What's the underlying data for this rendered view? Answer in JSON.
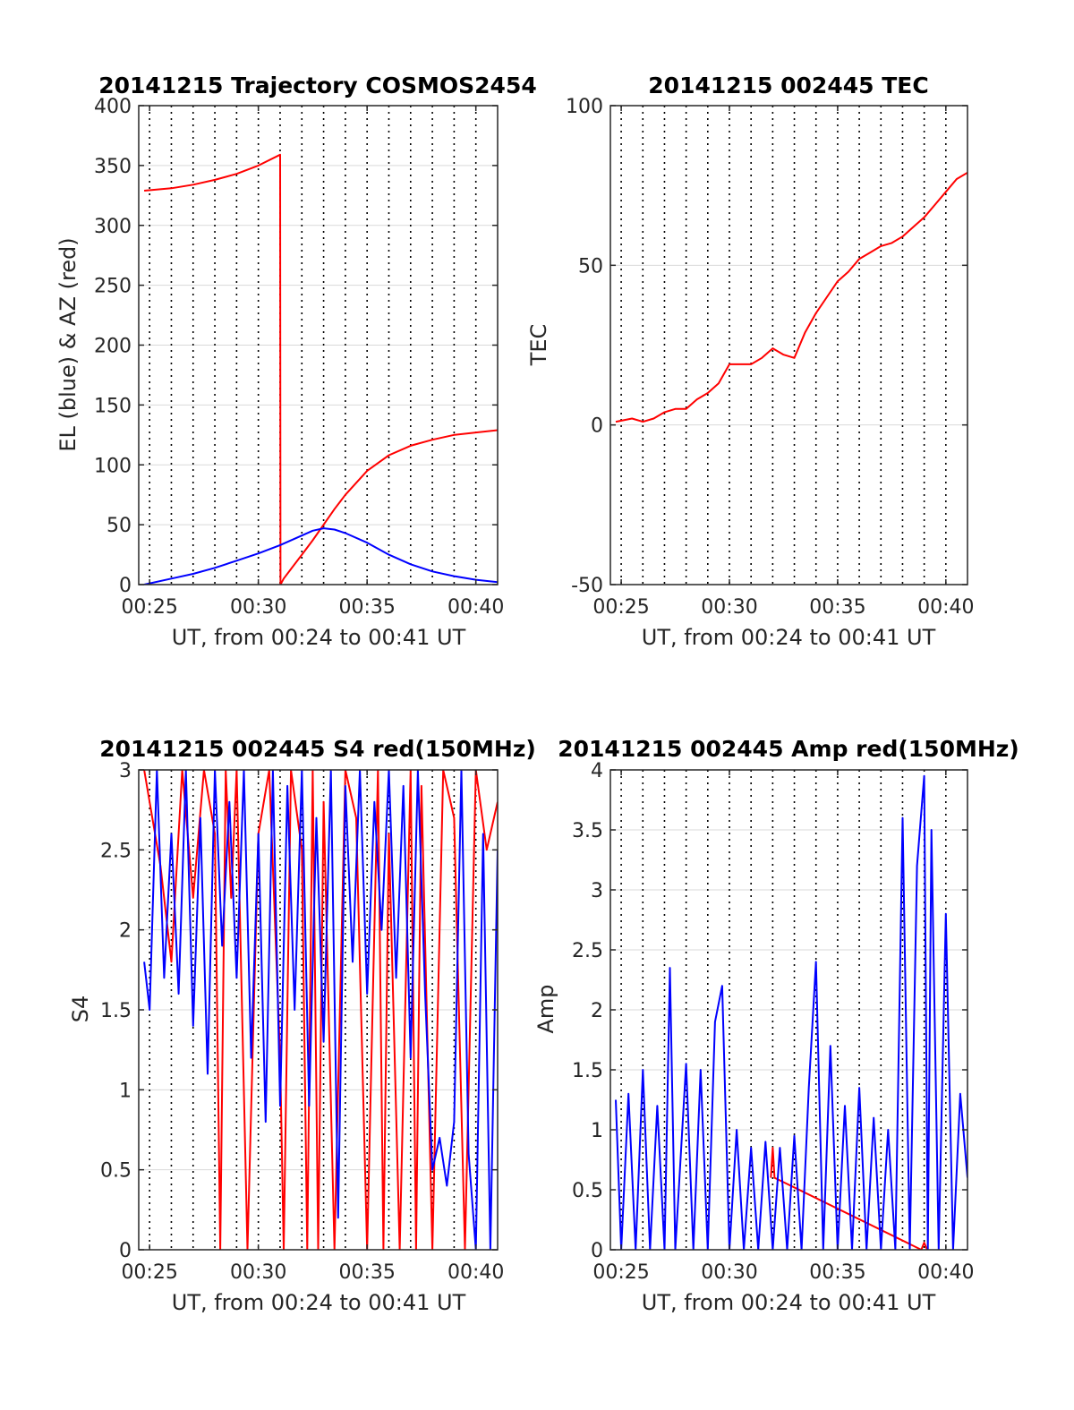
{
  "colors": {
    "az": "#ff0000",
    "el": "#0000ff",
    "grid": "#d9d9d9",
    "axis": "#262626"
  },
  "chart_data": [
    {
      "id": "trajectory",
      "type": "line",
      "title": "20141215 Trajectory COSMOS2454",
      "xlabel": "UT, from 00:24 to 00:41 UT",
      "ylabel": "EL (blue) & AZ (red)",
      "xlim": [
        "00:24:30",
        "00:41:00"
      ],
      "ylim": [
        0,
        400
      ],
      "xticks": [
        "00:25",
        "00:30",
        "00:35",
        "00:40"
      ],
      "yticks": [
        "0",
        "50",
        "100",
        "150",
        "200",
        "250",
        "300",
        "350",
        "400"
      ],
      "grid": true,
      "series": [
        {
          "color": "#ff0000",
          "x": [
            "00:24:45",
            "00:26:00",
            "00:27:00",
            "00:28:00",
            "00:29:00",
            "00:30:00",
            "00:31:00",
            "00:31:01",
            "00:31:10",
            "00:31:30",
            "00:32:00",
            "00:32:30",
            "00:33:00",
            "00:33:30",
            "00:34:00",
            "00:35:00",
            "00:36:00",
            "00:37:00",
            "00:38:00",
            "00:39:00",
            "00:40:00",
            "00:41:00"
          ],
          "y": [
            329,
            331,
            334,
            338,
            343,
            350,
            359,
            0,
            5,
            13,
            25,
            37,
            50,
            63,
            75,
            95,
            108,
            116,
            121,
            125,
            127,
            129
          ]
        },
        {
          "color": "#0000ff",
          "x": [
            "00:24:45",
            "00:26:00",
            "00:27:00",
            "00:28:00",
            "00:29:00",
            "00:30:00",
            "00:31:00",
            "00:32:00",
            "00:32:30",
            "00:33:00",
            "00:33:30",
            "00:34:00",
            "00:35:00",
            "00:36:00",
            "00:37:00",
            "00:38:00",
            "00:39:00",
            "00:40:00",
            "00:41:00"
          ],
          "y": [
            0,
            5,
            9,
            14,
            20,
            26,
            33,
            41,
            45,
            47,
            46,
            43,
            35,
            25,
            17,
            11,
            7,
            4,
            2
          ]
        }
      ]
    },
    {
      "id": "tec",
      "type": "line",
      "title": "20141215 002445 TEC",
      "xlabel": "UT, from 00:24 to 00:41 UT",
      "ylabel": "TEC",
      "xlim": [
        "00:24:30",
        "00:41:00"
      ],
      "ylim": [
        -50,
        100
      ],
      "xticks": [
        "00:25",
        "00:30",
        "00:35",
        "00:40"
      ],
      "yticks": [
        "-50",
        "0",
        "50",
        "100"
      ],
      "grid": true,
      "series": [
        {
          "color": "#ff0000",
          "x": [
            "00:24:45",
            "00:25:30",
            "00:26:00",
            "00:26:30",
            "00:27:00",
            "00:27:30",
            "00:28:00",
            "00:28:30",
            "00:29:00",
            "00:29:30",
            "00:30:00",
            "00:30:30",
            "00:31:00",
            "00:31:30",
            "00:32:00",
            "00:32:30",
            "00:33:00",
            "00:33:30",
            "00:34:00",
            "00:34:30",
            "00:35:00",
            "00:35:30",
            "00:36:00",
            "00:36:30",
            "00:37:00",
            "00:37:30",
            "00:38:00",
            "00:38:30",
            "00:39:00",
            "00:39:30",
            "00:40:00",
            "00:40:30",
            "00:41:00"
          ],
          "y": [
            1,
            2,
            1,
            2,
            4,
            5,
            5,
            8,
            10,
            13,
            19,
            19,
            19,
            21,
            24,
            22,
            21,
            29,
            35,
            40,
            45,
            48,
            52,
            54,
            56,
            57,
            59,
            62,
            65,
            69,
            73,
            77,
            79
          ]
        }
      ]
    },
    {
      "id": "s4",
      "type": "line",
      "title": "20141215 002445 S4 red(150MHz)",
      "xlabel": "UT, from 00:24 to 00:41 UT",
      "ylabel": "S4",
      "xlim": [
        "00:24:30",
        "00:41:00"
      ],
      "ylim": [
        0,
        3
      ],
      "xticks": [
        "00:25",
        "00:30",
        "00:35",
        "00:40"
      ],
      "yticks": [
        "0",
        "0.5",
        "1",
        "1.5",
        "2",
        "2.5",
        "3"
      ],
      "grid": true,
      "series": [
        {
          "color": "#ff0000",
          "x": [
            "00:24:45",
            "00:25:30",
            "00:26:00",
            "00:26:30",
            "00:27:00",
            "00:27:30",
            "00:28:00",
            "00:28:15",
            "00:28:30",
            "00:28:45",
            "00:29:00",
            "00:29:30",
            "00:30:00",
            "00:30:30",
            "00:31:00",
            "00:31:10",
            "00:31:30",
            "00:32:00",
            "00:32:15",
            "00:32:30",
            "00:32:45",
            "00:33:00",
            "00:33:30",
            "00:34:00",
            "00:34:30",
            "00:35:00",
            "00:35:30",
            "00:35:45",
            "00:36:00",
            "00:36:30",
            "00:37:00",
            "00:37:15",
            "00:37:30",
            "00:38:00",
            "00:38:30",
            "00:39:00",
            "00:39:30",
            "00:40:00",
            "00:40:30",
            "00:41:00"
          ],
          "y": [
            3,
            2.4,
            1.8,
            3,
            2.2,
            3,
            2.6,
            0,
            3,
            2.2,
            3,
            0,
            2.6,
            3,
            1.2,
            0,
            3,
            2.5,
            0,
            3,
            0,
            2.8,
            0,
            3,
            2.7,
            0,
            3,
            0,
            2.6,
            0,
            3,
            0,
            2.9,
            0,
            3,
            2.7,
            0,
            3,
            2.5,
            2.8
          ]
        },
        {
          "color": "#0000ff",
          "x": [
            "00:24:45",
            "00:25:00",
            "00:25:20",
            "00:25:40",
            "00:26:00",
            "00:26:20",
            "00:26:40",
            "00:27:00",
            "00:27:20",
            "00:27:40",
            "00:28:00",
            "00:28:20",
            "00:28:40",
            "00:29:00",
            "00:29:20",
            "00:29:40",
            "00:30:00",
            "00:30:20",
            "00:30:40",
            "00:31:00",
            "00:31:20",
            "00:31:40",
            "00:32:00",
            "00:32:20",
            "00:32:40",
            "00:33:00",
            "00:33:20",
            "00:33:40",
            "00:34:00",
            "00:34:20",
            "00:34:40",
            "00:35:00",
            "00:35:20",
            "00:35:40",
            "00:36:00",
            "00:36:20",
            "00:36:40",
            "00:37:00",
            "00:37:20",
            "00:37:40",
            "00:38:00",
            "00:38:20",
            "00:38:40",
            "00:39:00",
            "00:39:20",
            "00:39:40",
            "00:40:00",
            "00:40:20",
            "00:40:40",
            "00:41:00"
          ],
          "y": [
            1.8,
            1.5,
            3,
            1.7,
            2.6,
            1.6,
            3,
            1.4,
            2.7,
            1.1,
            3,
            1.9,
            2.8,
            1.7,
            3,
            1.2,
            2.6,
            0.8,
            3,
            0.9,
            2.9,
            1.5,
            3,
            0.9,
            2.7,
            1.3,
            3,
            0.2,
            2.9,
            1.8,
            3,
            1.6,
            2.8,
            2,
            3,
            1.7,
            2.9,
            1.2,
            3,
            1.6,
            0.5,
            0.7,
            0.4,
            0.8,
            3,
            0.6,
            0,
            2.6,
            0,
            2.5
          ]
        }
      ]
    },
    {
      "id": "amp",
      "type": "line",
      "title": "20141215 002445 Amp red(150MHz)",
      "xlabel": "UT, from 00:24 to 00:41 UT",
      "ylabel": "Amp",
      "xlim": [
        "00:24:30",
        "00:41:00"
      ],
      "ylim": [
        0,
        4
      ],
      "xticks": [
        "00:25",
        "00:30",
        "00:35",
        "00:40"
      ],
      "yticks": [
        "0",
        "0.5",
        "1",
        "1.5",
        "2",
        "2.5",
        "3",
        "3.5",
        "4"
      ],
      "grid": true,
      "series": [
        {
          "color": "#ff0000",
          "x": [
            "00:31:55",
            "00:32:00",
            "00:32:05",
            "00:38:52",
            "00:39:00",
            "00:39:08"
          ],
          "y": [
            0.6,
            0.85,
            0.6,
            0,
            0.06,
            0
          ]
        },
        {
          "color": "#0000ff",
          "x": [
            "00:24:45",
            "00:25:00",
            "00:25:20",
            "00:25:40",
            "00:26:00",
            "00:26:20",
            "00:26:40",
            "00:27:00",
            "00:27:15",
            "00:27:30",
            "00:28:00",
            "00:28:20",
            "00:28:40",
            "00:29:00",
            "00:29:20",
            "00:29:40",
            "00:30:00",
            "00:30:20",
            "00:30:40",
            "00:31:00",
            "00:31:20",
            "00:31:40",
            "00:32:00",
            "00:32:20",
            "00:32:40",
            "00:33:00",
            "00:33:20",
            "00:33:40",
            "00:34:00",
            "00:34:20",
            "00:34:40",
            "00:35:00",
            "00:35:20",
            "00:35:40",
            "00:36:00",
            "00:36:20",
            "00:36:40",
            "00:37:00",
            "00:37:20",
            "00:37:40",
            "00:38:00",
            "00:38:20",
            "00:38:40",
            "00:39:00",
            "00:39:10",
            "00:39:20",
            "00:39:40",
            "00:40:00",
            "00:40:20",
            "00:40:40",
            "00:41:00"
          ],
          "y": [
            1.25,
            0,
            1.3,
            0,
            1.5,
            0,
            1.2,
            0,
            2.35,
            0,
            1.55,
            0,
            1.5,
            0,
            1.9,
            2.2,
            0,
            1.0,
            0,
            0.85,
            0,
            0.9,
            0,
            0.85,
            0,
            0.95,
            0,
            1.35,
            2.4,
            0,
            1.7,
            0,
            1.2,
            0,
            1.35,
            0,
            1.1,
            0,
            1.0,
            0,
            3.6,
            0,
            3.2,
            3.95,
            0,
            3.5,
            0,
            2.8,
            0,
            1.3,
            0.6
          ]
        }
      ]
    }
  ]
}
